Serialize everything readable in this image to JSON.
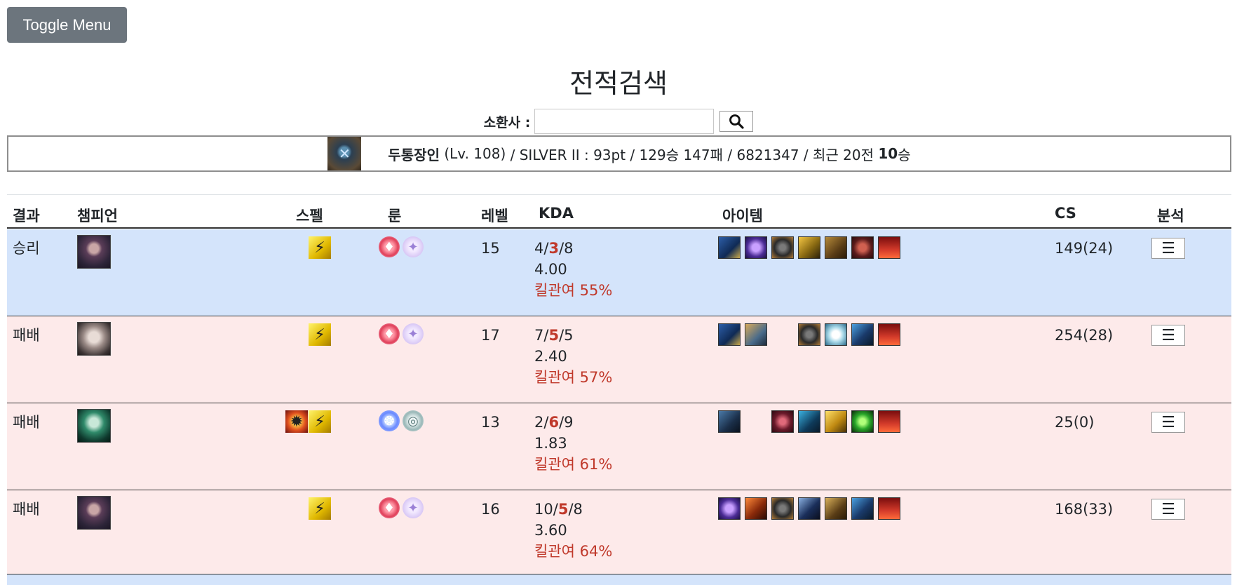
{
  "toggle_label": "Toggle Menu",
  "page_title": "전적검색",
  "search": {
    "label": "소환사 :",
    "value": ""
  },
  "summoner": {
    "name": "두통장인",
    "level": "(Lv. 108)",
    "tier_info": "/ SILVER II : 93pt / 129승 147패 / 6821347 / 최근 20전",
    "recent_wins": "10",
    "recent_suffix": "승"
  },
  "headers": {
    "result": "결과",
    "champion": "챔피언",
    "spell": "스펠",
    "rune": "룬",
    "level": "레벨",
    "kda": "KDA",
    "items": "아이템",
    "cs": "CS",
    "analysis": "분석"
  },
  "matches": [
    {
      "result": "승리",
      "level": "15",
      "kills": "4",
      "deaths": "3",
      "assists": "8",
      "ratio": "4.00",
      "kill_participation": "킬관여 55%",
      "cs": "149(24)",
      "champion_icon": "champion-portrait-dark-haired",
      "spells": [
        "flash-spell-icon"
      ],
      "runes": [
        "electrocute-rune-icon",
        "sorcery-rune-icon"
      ],
      "items": [
        "item-1",
        "item-2",
        "item-3",
        "item-4",
        "item-5",
        "item-6",
        "ward-trinket"
      ]
    },
    {
      "result": "패배",
      "level": "17",
      "kills": "7",
      "deaths": "5",
      "assists": "5",
      "ratio": "2.40",
      "kill_participation": "킬관여 57%",
      "cs": "254(28)",
      "champion_icon": "champion-portrait-white-haired",
      "spells": [
        "flash-spell-icon"
      ],
      "runes": [
        "electrocute-rune-icon",
        "sorcery-rune-icon"
      ],
      "items": [
        "item-1",
        "item-2",
        "empty",
        "item-4",
        "item-5",
        "item-6",
        "ward-trinket"
      ]
    },
    {
      "result": "패배",
      "level": "13",
      "kills": "2",
      "deaths": "6",
      "assists": "9",
      "ratio": "1.83",
      "kill_participation": "킬관여 61%",
      "cs": "25(0)",
      "champion_icon": "champion-portrait-green",
      "spells": [
        "ignite-spell-icon",
        "flash-spell-icon"
      ],
      "runes": [
        "aery-rune-icon",
        "resolve-rune-icon"
      ],
      "items": [
        "item-1",
        "empty",
        "item-3",
        "item-4",
        "item-5",
        "item-6",
        "ward-trinket"
      ]
    },
    {
      "result": "패배",
      "level": "16",
      "kills": "10",
      "deaths": "5",
      "assists": "8",
      "ratio": "3.60",
      "kill_participation": "킬관여 64%",
      "cs": "168(33)",
      "champion_icon": "champion-portrait-dark-haired",
      "spells": [
        "flash-spell-icon"
      ],
      "runes": [
        "electrocute-rune-icon",
        "sorcery-rune-icon"
      ],
      "items": [
        "item-1",
        "item-2",
        "item-3",
        "item-4",
        "item-5",
        "item-6",
        "ward-trinket"
      ]
    }
  ]
}
